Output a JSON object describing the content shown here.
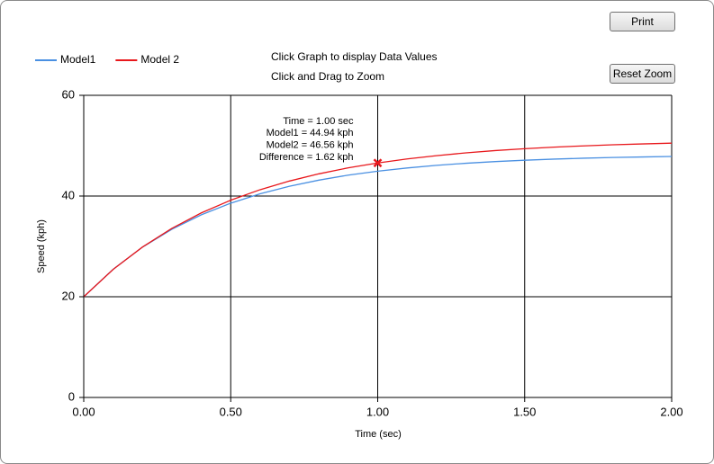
{
  "buttons": {
    "print": "Print",
    "reset_zoom": "Reset Zoom"
  },
  "instructions": [
    "Click Graph to display Data Values",
    "Click and Drag to Zoom"
  ],
  "chart_data": {
    "type": "line",
    "x_label": "Time (sec)",
    "y_label": "Speed (kph)",
    "x": [
      0,
      0.1,
      0.2,
      0.3,
      0.4,
      0.5,
      0.6,
      0.7,
      0.8,
      0.9,
      1.0,
      1.1,
      1.2,
      1.3,
      1.4,
      1.5,
      1.6,
      1.7,
      1.8,
      1.9,
      2.0
    ],
    "series": [
      {
        "name": "Model1",
        "color": "#4a90e2",
        "values": [
          20,
          25.45,
          29.86,
          33.41,
          36.27,
          38.58,
          40.45,
          41.94,
          43.16,
          44.15,
          44.94,
          45.57,
          46.09,
          46.51,
          46.84,
          47.11,
          47.33,
          47.51,
          47.65,
          47.76,
          47.86
        ]
      },
      {
        "name": "Model 2",
        "color": "#e8181c",
        "values": [
          20,
          25.43,
          29.88,
          33.59,
          36.65,
          39.17,
          41.26,
          42.98,
          44.41,
          45.6,
          46.56,
          47.36,
          48.02,
          48.57,
          49.03,
          49.4,
          49.71,
          49.96,
          50.18,
          50.35,
          50.5
        ]
      }
    ],
    "xlim": [
      0,
      2
    ],
    "ylim": [
      0,
      60
    ],
    "xticks": [
      {
        "value": 0,
        "label": "0.00"
      },
      {
        "value": 0.5,
        "label": "0.50"
      },
      {
        "value": 1,
        "label": "1.00"
      },
      {
        "value": 1.5,
        "label": "1.50"
      },
      {
        "value": 2,
        "label": "2.00"
      }
    ],
    "yticks": [
      0,
      20,
      40,
      60
    ],
    "grid": true,
    "selected_index": 10,
    "annotation": [
      "Time = 1.00 sec",
      "Model1 = 44.94 kph",
      "Model2 = 46.56 kph",
      "Difference = 1.62 kph"
    ]
  }
}
